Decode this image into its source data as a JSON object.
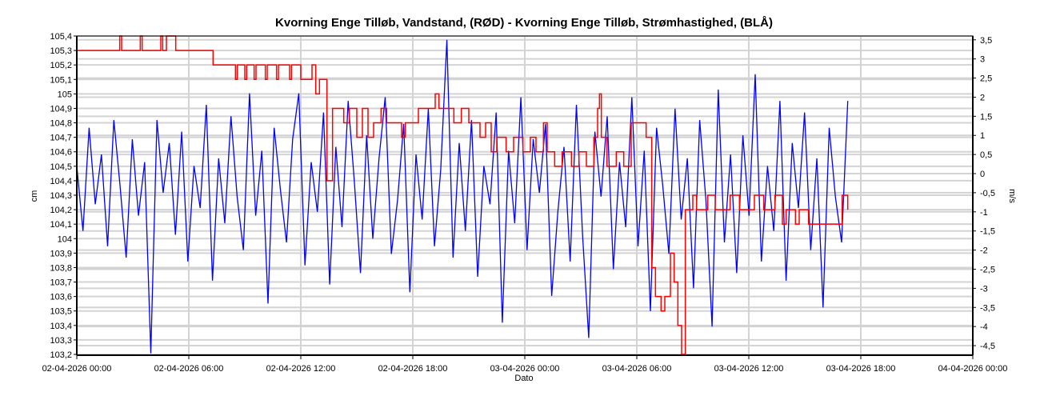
{
  "chart_data": {
    "type": "line",
    "title": "Kvorning Enge Tilløb, Vandstand, (RØD)  -  Kvorning Enge Tilløb, Strømhastighed, (BLÅ)",
    "xlabel": "Dato",
    "ylabel": "cm",
    "y2label": "m/s",
    "xlim_hours": [
      0,
      48
    ],
    "x_ticks": [
      "02-04-2026 00:00",
      "02-04-2026 06:00",
      "02-04-2026 12:00",
      "02-04-2026 18:00",
      "03-04-2026 00:00",
      "03-04-2026 06:00",
      "03-04-2026 12:00",
      "03-04-2026 18:00",
      "04-04-2026 00:00"
    ],
    "ylim": [
      103.2,
      105.4
    ],
    "y_ticks": [
      "105,4",
      "105,3",
      "105,2",
      "105,1",
      "105",
      "104,9",
      "104,8",
      "104,7",
      "104,6",
      "104,5",
      "104,4",
      "104,3",
      "104,2",
      "104,1",
      "104",
      "103,9",
      "103,8",
      "103,7",
      "103,6",
      "103,5",
      "103,4",
      "103,3",
      "103,2"
    ],
    "y2lim": [
      -4.75,
      3.6
    ],
    "y2_ticks": [
      "3,5",
      "3",
      "2,5",
      "2",
      "1,5",
      "1",
      "0,5",
      "0",
      "-0,5",
      "-1",
      "-1,5",
      "-2",
      "-2,5",
      "-3",
      "-3,5",
      "-4",
      "-4,5"
    ],
    "grid": true,
    "series": [
      {
        "name": "Vandstand (RØD)",
        "color": "#ff0000",
        "axis": "left",
        "step": true,
        "points_hours_value": [
          [
            0,
            105.3
          ],
          [
            2.3,
            105.4
          ],
          [
            2.4,
            105.3
          ],
          [
            3.4,
            105.4
          ],
          [
            3.5,
            105.3
          ],
          [
            4.5,
            105.4
          ],
          [
            4.6,
            105.3
          ],
          [
            4.8,
            105.4
          ],
          [
            5.3,
            105.3
          ],
          [
            7.3,
            105.2
          ],
          [
            8.5,
            105.1
          ],
          [
            8.6,
            105.2
          ],
          [
            9.0,
            105.1
          ],
          [
            9.1,
            105.2
          ],
          [
            9.5,
            105.1
          ],
          [
            9.6,
            105.2
          ],
          [
            10.1,
            105.1
          ],
          [
            10.2,
            105.2
          ],
          [
            10.7,
            105.1
          ],
          [
            10.8,
            105.2
          ],
          [
            11.4,
            105.1
          ],
          [
            11.5,
            105.2
          ],
          [
            12.0,
            105.1
          ],
          [
            12.6,
            105.2
          ],
          [
            12.8,
            105.0
          ],
          [
            13.0,
            105.1
          ],
          [
            13.4,
            104.4
          ],
          [
            13.7,
            104.9
          ],
          [
            14.3,
            104.8
          ],
          [
            14.6,
            104.9
          ],
          [
            15.0,
            104.7
          ],
          [
            15.3,
            104.9
          ],
          [
            15.6,
            104.7
          ],
          [
            15.9,
            104.8
          ],
          [
            16.3,
            104.9
          ],
          [
            16.6,
            104.8
          ],
          [
            17.4,
            104.7
          ],
          [
            17.6,
            104.8
          ],
          [
            18.3,
            104.9
          ],
          [
            19.2,
            105.0
          ],
          [
            19.4,
            104.9
          ],
          [
            20.2,
            104.8
          ],
          [
            20.6,
            104.9
          ],
          [
            21.0,
            104.8
          ],
          [
            21.6,
            104.7
          ],
          [
            21.9,
            104.8
          ],
          [
            22.2,
            104.6
          ],
          [
            22.5,
            104.7
          ],
          [
            23.0,
            104.6
          ],
          [
            23.4,
            104.7
          ],
          [
            23.9,
            104.6
          ],
          [
            24.3,
            104.7
          ],
          [
            24.6,
            104.6
          ],
          [
            25.0,
            104.8
          ],
          [
            25.2,
            104.6
          ],
          [
            25.6,
            104.5
          ],
          [
            26.0,
            104.6
          ],
          [
            26.5,
            104.5
          ],
          [
            26.9,
            104.6
          ],
          [
            27.3,
            104.5
          ],
          [
            27.7,
            104.7
          ],
          [
            27.9,
            104.9
          ],
          [
            28.0,
            105.0
          ],
          [
            28.1,
            104.7
          ],
          [
            28.4,
            104.5
          ],
          [
            28.9,
            104.6
          ],
          [
            29.3,
            104.5
          ],
          [
            29.7,
            104.8
          ],
          [
            30.5,
            104.7
          ],
          [
            30.8,
            103.8
          ],
          [
            31.0,
            103.6
          ],
          [
            31.3,
            103.5
          ],
          [
            31.5,
            103.6
          ],
          [
            31.8,
            103.9
          ],
          [
            32.0,
            103.7
          ],
          [
            32.2,
            103.4
          ],
          [
            32.4,
            103.2
          ],
          [
            32.6,
            104.2
          ],
          [
            33.0,
            104.3
          ],
          [
            33.2,
            104.2
          ],
          [
            33.8,
            104.3
          ],
          [
            34.2,
            104.2
          ],
          [
            35.0,
            104.3
          ],
          [
            35.5,
            104.2
          ],
          [
            36.3,
            104.3
          ],
          [
            36.8,
            104.2
          ],
          [
            37.4,
            104.3
          ],
          [
            37.8,
            104.1
          ],
          [
            38.0,
            104.2
          ],
          [
            38.5,
            104.1
          ],
          [
            38.7,
            104.2
          ],
          [
            39.2,
            104.1
          ],
          [
            41.0,
            104.3
          ],
          [
            41.3,
            104.2
          ]
        ]
      },
      {
        "name": "Strømhastighed (BLÅ)",
        "color": "#0000ff",
        "axis": "right",
        "x_start_hours": 0,
        "x_end_hours": 41.3,
        "values": [
          0.2,
          -1.5,
          1.2,
          -0.8,
          0.5,
          -1.9,
          1.4,
          -0.3,
          -2.2,
          0.9,
          -1.1,
          0.3,
          -4.7,
          1.4,
          -0.5,
          0.8,
          -1.6,
          1.1,
          -2.3,
          0.2,
          -0.9,
          1.8,
          -2.8,
          0.4,
          -1.3,
          1.5,
          -0.6,
          -2.0,
          2.1,
          -1.1,
          0.6,
          -3.4,
          1.2,
          -0.4,
          -1.8,
          0.9,
          2.1,
          -2.4,
          0.3,
          -1.0,
          1.6,
          -2.9,
          0.7,
          -1.4,
          1.9,
          -0.2,
          -2.6,
          1.0,
          -1.7,
          0.4,
          2.0,
          -2.1,
          -0.7,
          1.3,
          -3.1,
          0.5,
          -1.2,
          1.7,
          -1.9,
          0.1,
          3.5,
          -2.2,
          0.8,
          -1.5,
          1.4,
          -2.7,
          0.2,
          -0.8,
          1.6,
          -3.9,
          0.6,
          -1.3,
          2.0,
          -2.0,
          0.9,
          -0.5,
          1.3,
          -3.2,
          -1.0,
          0.7,
          -2.3,
          1.8,
          -1.6,
          -4.3,
          1.1,
          -0.6,
          1.5,
          -2.5,
          0.3,
          -1.4,
          2.0,
          -1.9,
          0.6,
          -3.6,
          1.2,
          -0.3,
          -2.1,
          1.7,
          -1.2,
          0.4,
          -3.0,
          1.4,
          -0.7,
          -4.0,
          2.2,
          -1.8,
          0.5,
          -2.6,
          1.0,
          -1.1,
          2.6,
          -2.3,
          0.2,
          -1.5,
          1.9,
          -2.8,
          0.8,
          -0.9,
          1.6,
          -2.0,
          0.4,
          -3.5,
          1.2,
          -0.6,
          -1.8,
          1.9
        ]
      }
    ]
  }
}
